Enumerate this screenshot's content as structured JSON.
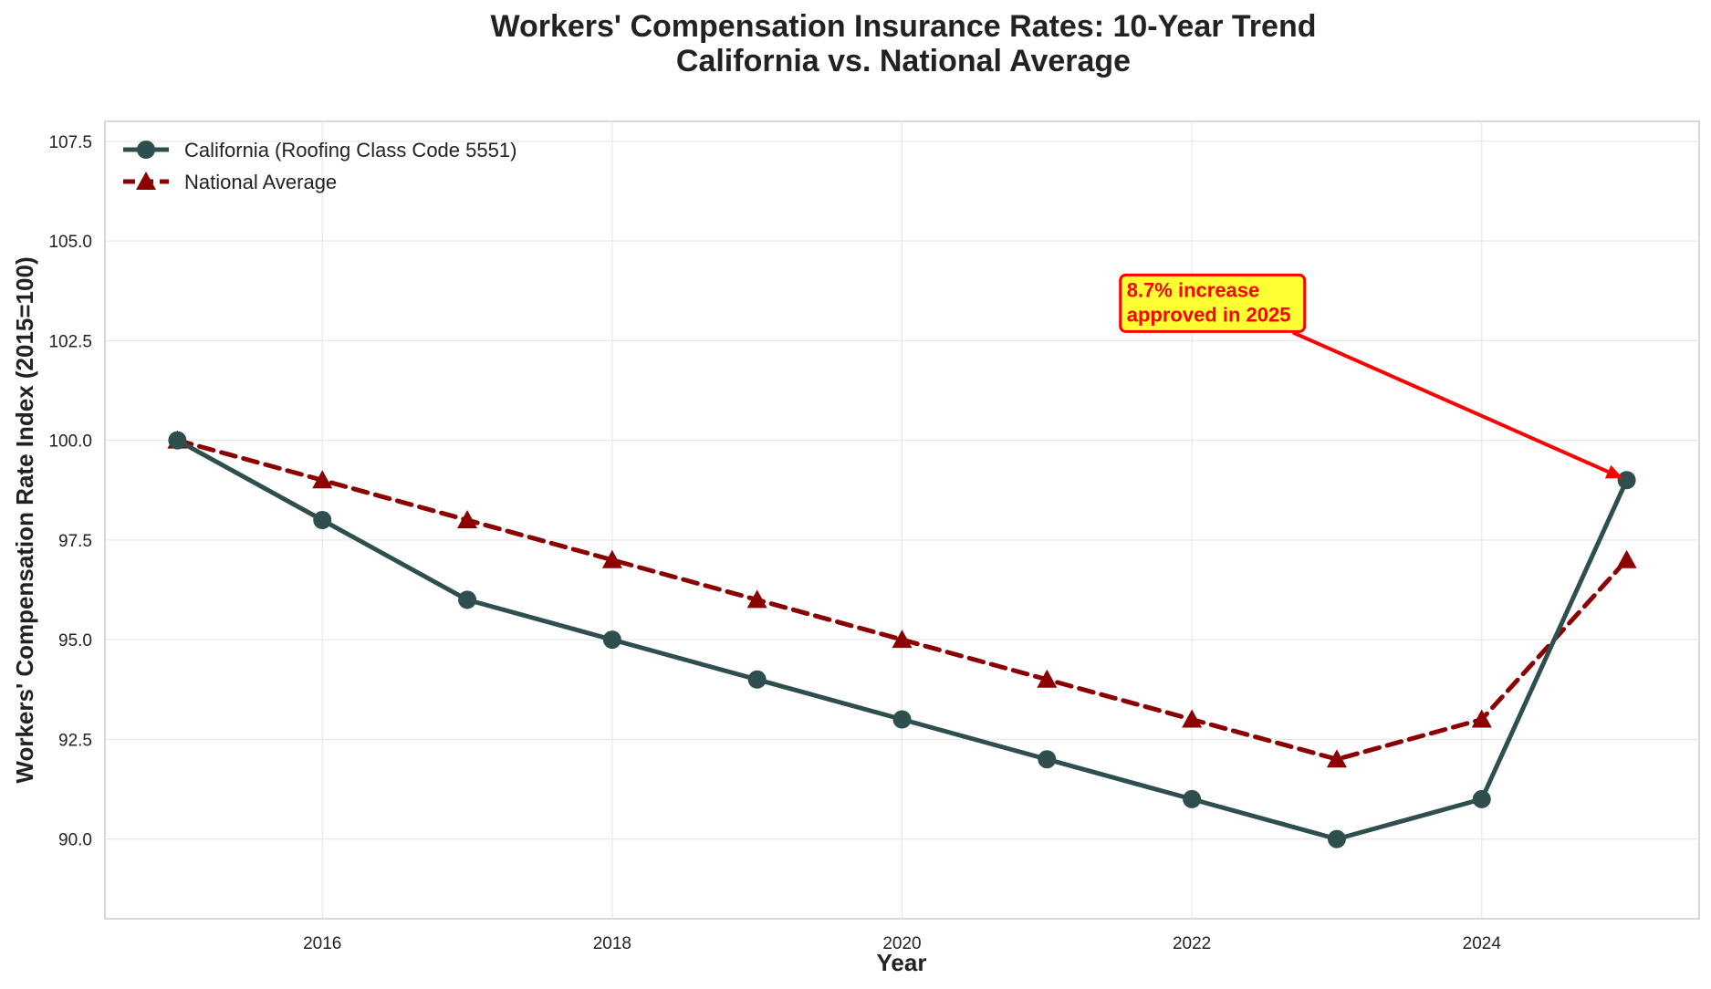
{
  "chart_data": {
    "type": "line",
    "title_lines": [
      "Workers' Compensation Insurance Rates: 10-Year Trend",
      "California vs. National Average"
    ],
    "xlabel": "Year",
    "ylabel": "Workers' Compensation Rate Index (2015=100)",
    "x": [
      2015,
      2016,
      2017,
      2018,
      2019,
      2020,
      2021,
      2022,
      2023,
      2024,
      2025
    ],
    "xlim": [
      2014.5,
      2025.5
    ],
    "ylim": [
      88.0,
      108.0
    ],
    "xticks": [
      "2016",
      "2018",
      "2020",
      "2022",
      "2024"
    ],
    "xtick_values": [
      2016,
      2018,
      2020,
      2022,
      2024
    ],
    "yticks": [
      "90.0",
      "92.5",
      "95.0",
      "97.5",
      "100.0",
      "102.5",
      "105.0",
      "107.5"
    ],
    "ytick_values": [
      90.0,
      92.5,
      95.0,
      97.5,
      100.0,
      102.5,
      105.0,
      107.5
    ],
    "grid": true,
    "legend_position": "top-left",
    "series": [
      {
        "name": "California (Roofing Class Code 5551)",
        "values": [
          100,
          98,
          96,
          95,
          94,
          93,
          92,
          91,
          90,
          91,
          99
        ],
        "color": "#2f4f4f",
        "line_style": "solid",
        "marker": "circle"
      },
      {
        "name": "National Average",
        "values": [
          100,
          99,
          98,
          97,
          96,
          95,
          94,
          93,
          92,
          93,
          97
        ],
        "color": "#8b0000",
        "line_style": "dashed",
        "marker": "triangle"
      }
    ],
    "annotation": {
      "lines": [
        "8.7% increase",
        "approved in 2025"
      ],
      "target_x": 2025,
      "target_y": 99,
      "text_x": 2021.5,
      "text_y": 103.3,
      "text_color": "#ff0000",
      "box_color": "#ffff33",
      "arrow_color": "#ff0000"
    }
  }
}
